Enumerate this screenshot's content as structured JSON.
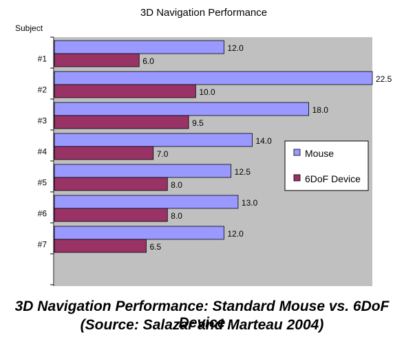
{
  "chart_data": {
    "type": "bar",
    "orientation": "horizontal",
    "title": "3D Navigation Performance",
    "ylabel": "Subject",
    "xlabel": "",
    "categories": [
      "#1",
      "#2",
      "#3",
      "#4",
      "#5",
      "#6",
      "#7"
    ],
    "series": [
      {
        "name": "Mouse",
        "values": [
          12.0,
          22.5,
          18.0,
          14.0,
          12.5,
          13.0,
          12.0
        ],
        "labels": [
          "12.0",
          "22.5",
          "18.0",
          "14.0",
          "12.5",
          "13.0",
          "12.0"
        ]
      },
      {
        "name": "6DoF Device",
        "values": [
          6.0,
          10.0,
          9.5,
          7.0,
          8.0,
          8.0,
          6.5
        ],
        "labels": [
          "6.0",
          "10.0",
          "9.5",
          "7.0",
          "8.0",
          "8.0",
          "6.5"
        ]
      }
    ],
    "xlim": [
      0,
      22.5
    ],
    "grid": false,
    "legend_position": "right",
    "colors": {
      "Mouse": "#9999ff",
      "6DoF Device": "#993366",
      "plot_background": "#c0c0c0"
    }
  },
  "caption": {
    "line1": "3D Navigation Performance: Standard Mouse vs. 6DoF Device",
    "line2": "(Source: Salazar and Marteau 2004)"
  }
}
